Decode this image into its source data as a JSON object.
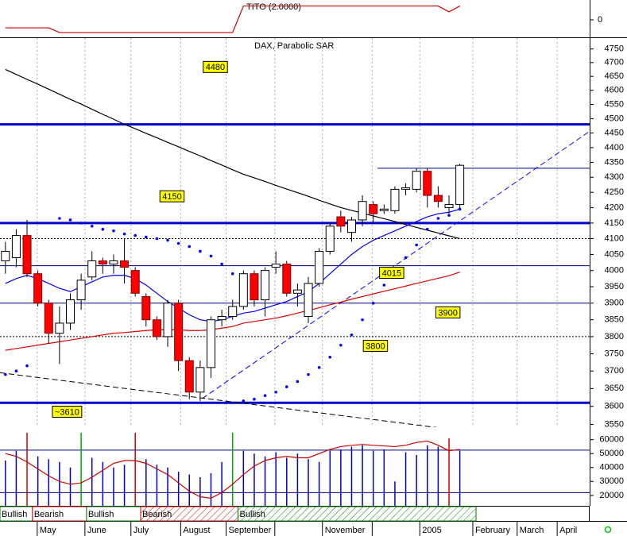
{
  "chart_data": {
    "type": "candlestick",
    "title": "DAX, Parabolic SAR",
    "xlim": [
      -0.5,
      54
    ],
    "xticks": [
      {
        "value": 2.94,
        "label": "May"
      },
      {
        "value": 7.35,
        "label": "June"
      },
      {
        "value": 11.6,
        "label": "July"
      },
      {
        "value": 16.2,
        "label": "August"
      },
      {
        "value": 20.4,
        "label": "September"
      },
      {
        "value": 24.9,
        "label": null
      },
      {
        "value": 29.3,
        "label": "November"
      },
      {
        "value": 33.9,
        "label": null
      },
      {
        "value": 38.3,
        "label": "2005"
      },
      {
        "value": 43.2,
        "label": "February"
      },
      {
        "value": 47.3,
        "label": "March"
      },
      {
        "value": 51,
        "label": "April"
      }
    ],
    "ylim": [
      3540,
      4790
    ],
    "log_scale": true,
    "yticks": [
      3550,
      3600,
      3650,
      3700,
      3750,
      3800,
      3850,
      3900,
      3950,
      4000,
      4050,
      4100,
      4150,
      4200,
      4250,
      4300,
      4350,
      4400,
      4450,
      4500,
      4550,
      4600,
      4650,
      4700,
      4750
    ],
    "up_color": "#ffffff",
    "down_color": "#ff0000",
    "open": [
      4030,
      4040,
      4110,
      3990,
      3900,
      3810,
      3840,
      3910,
      3980,
      4030,
      4020,
      4030,
      4000,
      3920,
      3850,
      3800,
      3900,
      3730,
      3640,
      3710,
      3850,
      3860,
      3890,
      3990,
      3910,
      4010,
      4020,
      3930,
      3860,
      3960,
      4060,
      4170,
      4120,
      4160,
      4210,
      4190,
      4190,
      4260,
      4260,
      4320,
      4240,
      4200,
      4210
    ],
    "high": [
      4090,
      4130,
      4160,
      4000,
      3910,
      3890,
      3930,
      3990,
      4060,
      4040,
      4050,
      4100,
      4010,
      3930,
      3860,
      3910,
      3910,
      3740,
      3730,
      3860,
      3880,
      3910,
      4000,
      4000,
      4010,
      4060,
      4030,
      3960,
      3980,
      4070,
      4150,
      4190,
      4170,
      4240,
      4220,
      4210,
      4270,
      4280,
      4330,
      4330,
      4270,
      4240,
      4345
    ],
    "low": [
      3990,
      4010,
      3980,
      3890,
      3780,
      3720,
      3820,
      3880,
      3970,
      3990,
      3990,
      3960,
      3920,
      3830,
      3790,
      3770,
      3700,
      3620,
      3615,
      3680,
      3830,
      3850,
      3880,
      3890,
      3860,
      3990,
      3920,
      3890,
      3840,
      3950,
      4050,
      4120,
      4090,
      4140,
      4150,
      4180,
      4180,
      4240,
      4250,
      4200,
      4200,
      4180,
      4200
    ],
    "close": [
      4060,
      4110,
      3990,
      3900,
      3810,
      3840,
      3910,
      3970,
      4030,
      4020,
      4030,
      4010,
      3930,
      3850,
      3800,
      3900,
      3730,
      3640,
      3710,
      3850,
      3860,
      3890,
      3990,
      3910,
      4000,
      4020,
      3930,
      3940,
      3960,
      4060,
      4140,
      4140,
      4160,
      4220,
      4180,
      4195,
      4260,
      4265,
      4320,
      4240,
      4220,
      4210,
      4340
    ],
    "lines": [
      {
        "color": "#000000",
        "values": [
          4675,
          4657,
          4639,
          4622,
          4604,
          4586,
          4568,
          4551,
          4533,
          4515,
          4498,
          4480,
          4465,
          4449,
          4434,
          4418,
          4403,
          4387,
          4372,
          4356,
          4341,
          4325,
          4310,
          4298,
          4286,
          4273,
          4261,
          4249,
          4237,
          4224,
          4212,
          4200,
          4191,
          4182,
          4173,
          4164,
          4155,
          4145,
          4136,
          4127,
          4118,
          4109,
          4100
        ]
      },
      {
        "color": "#0000ff",
        "values": [
          3960,
          3975,
          3985,
          3975,
          3960,
          3945,
          3935,
          3950,
          3965,
          3980,
          3985,
          3985,
          3975,
          3955,
          3930,
          3905,
          3885,
          3865,
          3850,
          3845,
          3850,
          3860,
          3870,
          3875,
          3885,
          3895,
          3905,
          3920,
          3935,
          3960,
          3990,
          4020,
          4050,
          4075,
          4095,
          4110,
          4125,
          4140,
          4155,
          4170,
          4180,
          4185,
          4195
        ]
      },
      {
        "color": "#dd0000",
        "values": [
          3760,
          3765,
          3770,
          3775,
          3780,
          3785,
          3790,
          3795,
          3800,
          3805,
          3810,
          3812,
          3815,
          3818,
          3820,
          3820,
          3820,
          3818,
          3818,
          3820,
          3825,
          3830,
          3840,
          3845,
          3850,
          3855,
          3862,
          3870,
          3878,
          3886,
          3895,
          3903,
          3912,
          3920,
          3928,
          3936,
          3944,
          3952,
          3960,
          3968,
          3976,
          3984,
          3995
        ]
      }
    ],
    "sar": {
      "color": "#0000ff",
      "values": [
        3690,
        3700,
        3715,
        null,
        null,
        4165,
        4160,
        4150,
        4140,
        4130,
        4125,
        4115,
        4110,
        4105,
        4100,
        4095,
        4085,
        4075,
        4060,
        4045,
        4020,
        3990,
        3615,
        3620,
        3630,
        3640,
        3655,
        3670,
        3690,
        3710,
        3740,
        3775,
        3805,
        3850,
        3900,
        3955,
        4005,
        4040,
        4080,
        4130,
        4165,
        4175,
        4195
      ]
    },
    "levels": [
      {
        "value": 4480,
        "style": "thick",
        "label_at": [
          19.4,
          4684
        ]
      },
      {
        "value": 4330,
        "style": "thin",
        "from": 34.4
      },
      {
        "value": 4150,
        "style": "thick",
        "label_at": [
          15.4,
          4237
        ]
      },
      {
        "value": 4100,
        "style": "dotted"
      },
      {
        "value": 4015,
        "style": "thin",
        "label_at": [
          35.7,
          3993
        ]
      },
      {
        "value": 3900,
        "style": "thin",
        "label_at": [
          40.9,
          3872
        ]
      },
      {
        "value": 3800,
        "style": "dotted",
        "label_at": [
          34.2,
          3773
        ]
      },
      {
        "value": 3610,
        "style": "thick",
        "label": "~3610",
        "label_at": [
          5.7,
          3585
        ]
      }
    ],
    "trendlines": [
      {
        "color": "#0000ff",
        "from": [
          18.2,
          3622
        ],
        "to": [
          54,
          4456
        ]
      },
      {
        "color": "#000000",
        "from": [
          -0.5,
          3695
        ],
        "to": [
          44,
          3526
        ]
      }
    ],
    "volume": {
      "ylim": [
        12500,
        73500
      ],
      "yticks": [
        20000,
        30000,
        40000,
        50000,
        60000
      ],
      "levels": [
        52500,
        22000
      ],
      "values": [
        45000,
        52000,
        65000,
        48000,
        46000,
        44000,
        40000,
        65000,
        47000,
        44000,
        40000,
        42000,
        65000,
        46000,
        42000,
        40000,
        37000,
        35000,
        33000,
        36000,
        44000,
        65000,
        52000,
        50000,
        48000,
        51000,
        47000,
        50000,
        46000,
        44000,
        52000,
        53000,
        55000,
        56000,
        52000,
        53000,
        30000,
        51000,
        49000,
        56000,
        55000,
        61000,
        52000
      ],
      "colors": [
        "#0000cc",
        "#0000cc",
        "#cc0000",
        "#0000cc",
        "#0000cc",
        "#0000cc",
        "#0000cc",
        "#00aa00",
        "#0000cc",
        "#0000cc",
        "#0000cc",
        "#0000cc",
        "#cc0000",
        "#0000cc",
        "#0000cc",
        "#0000cc",
        "#0000cc",
        "#0000cc",
        "#0000cc",
        "#0000cc",
        "#0000cc",
        "#00aa00",
        "#0000cc",
        "#0000cc",
        "#0000cc",
        "#0000cc",
        "#0000cc",
        "#0000cc",
        "#0000cc",
        "#0000cc",
        "#0000cc",
        "#0000cc",
        "#0000cc",
        "#0000cc",
        "#0000cc",
        "#0000cc",
        "#0000cc",
        "#0000cc",
        "#0000cc",
        "#0000cc",
        "#0000cc",
        "#cc0000",
        "#0000cc"
      ],
      "oscillator": {
        "color": "#cc0000",
        "values": [
          50000,
          48000,
          44000,
          39000,
          34000,
          30000,
          28000,
          29000,
          33000,
          38000,
          43000,
          45000,
          45000,
          43000,
          39000,
          35000,
          29000,
          23000,
          19000,
          18000,
          22000,
          28000,
          35000,
          41000,
          45000,
          47000,
          48000,
          47000,
          47000,
          50000,
          53000,
          55000,
          56000,
          56500,
          56000,
          55500,
          55000,
          56000,
          58000,
          59000,
          56000,
          52000,
          53000
        ]
      }
    },
    "indicator": {
      "title": "TITO (2.0000)",
      "color": "#cc0000",
      "ylim": [
        -1.2,
        1.2
      ],
      "yticks": [
        0
      ],
      "values": [
        -0.55,
        -0.55,
        -0.55,
        -0.55,
        -0.55,
        -0.87,
        -0.87,
        -0.87,
        -0.87,
        -0.87,
        -0.87,
        -0.87,
        -0.87,
        -0.87,
        -0.87,
        -0.87,
        -0.87,
        -0.87,
        -0.87,
        -0.87,
        -0.87,
        -0.87,
        0.95,
        0.95,
        0.95,
        0.95,
        0.95,
        0.95,
        0.95,
        0.95,
        0.95,
        0.95,
        0.95,
        0.95,
        0.95,
        0.95,
        0.95,
        0.95,
        0.95,
        0.95,
        0.95,
        0.55,
        0.95
      ]
    },
    "regimes": [
      {
        "label": "Bullish",
        "start": 0,
        "end": 2,
        "color": "#008000",
        "hatch": false
      },
      {
        "label": "Bearish",
        "start": 3,
        "end": 7,
        "color": "#cc0000",
        "hatch": false
      },
      {
        "label": "Bullish",
        "start": 8,
        "end": 12,
        "color": "#008000",
        "hatch": false
      },
      {
        "label": "Bearish",
        "start": 13,
        "end": 21,
        "color": "#cc0000",
        "hatch": true
      },
      {
        "label": "Bullish",
        "start": 22,
        "end": 43,
        "color": "#008000",
        "hatch": true
      }
    ]
  }
}
